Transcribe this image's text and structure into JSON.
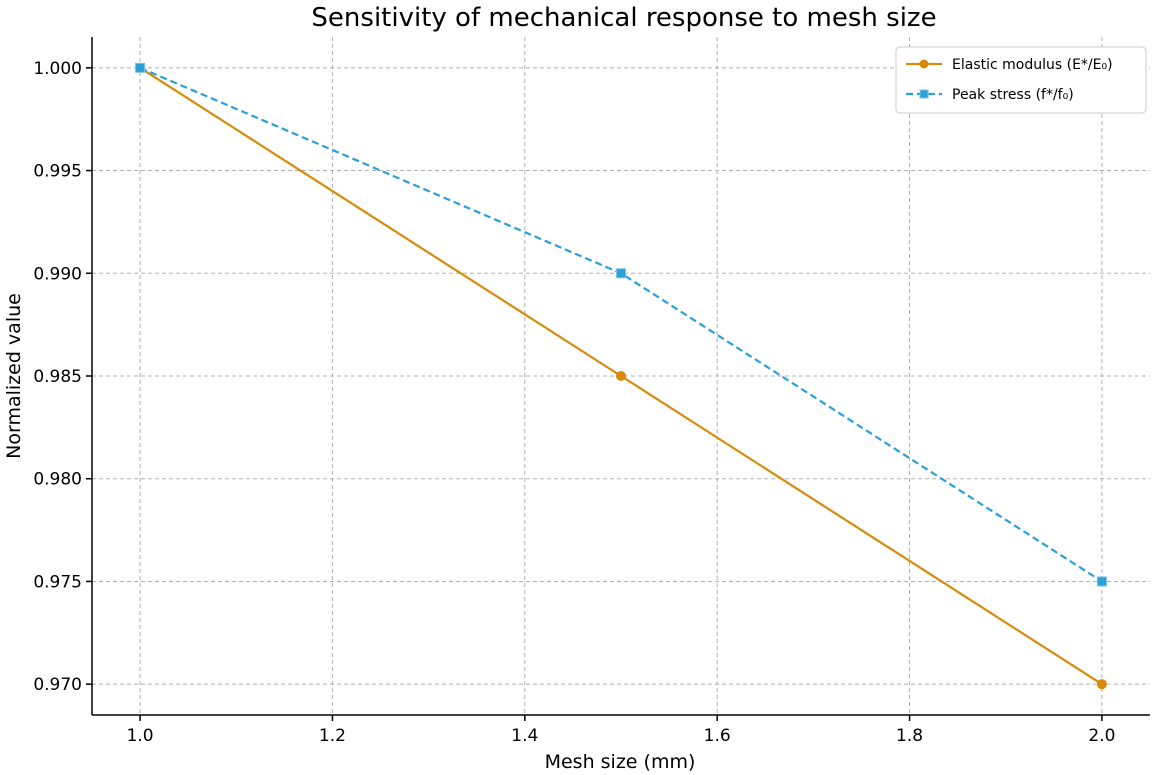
{
  "chart_data": {
    "type": "line",
    "title": "Sensitivity of mechanical response to mesh size",
    "xlabel": "Mesh size (mm)",
    "ylabel": "Normalized value",
    "xlim": [
      0.95,
      2.05
    ],
    "ylim": [
      0.9685,
      1.0015
    ],
    "xticks": [
      "1.0",
      "1.2",
      "1.4",
      "1.6",
      "1.8",
      "2.0"
    ],
    "yticks": [
      "0.970",
      "0.975",
      "0.980",
      "0.985",
      "0.990",
      "0.995",
      "1.000"
    ],
    "grid": true,
    "legend_position": "top-right",
    "series": [
      {
        "name": "Elastic modulus (E*/E₀)",
        "x": [
          1.0,
          1.5,
          2.0
        ],
        "values": [
          1.0,
          0.985,
          0.97
        ],
        "color": "#d88a0a",
        "line_style": "solid",
        "marker": "circle"
      },
      {
        "name": "Peak stress (f*/f₀)",
        "x": [
          1.0,
          1.5,
          2.0
        ],
        "values": [
          1.0,
          0.99,
          0.975
        ],
        "color": "#2b9fd8",
        "line_style": "dashed",
        "marker": "square"
      }
    ]
  }
}
